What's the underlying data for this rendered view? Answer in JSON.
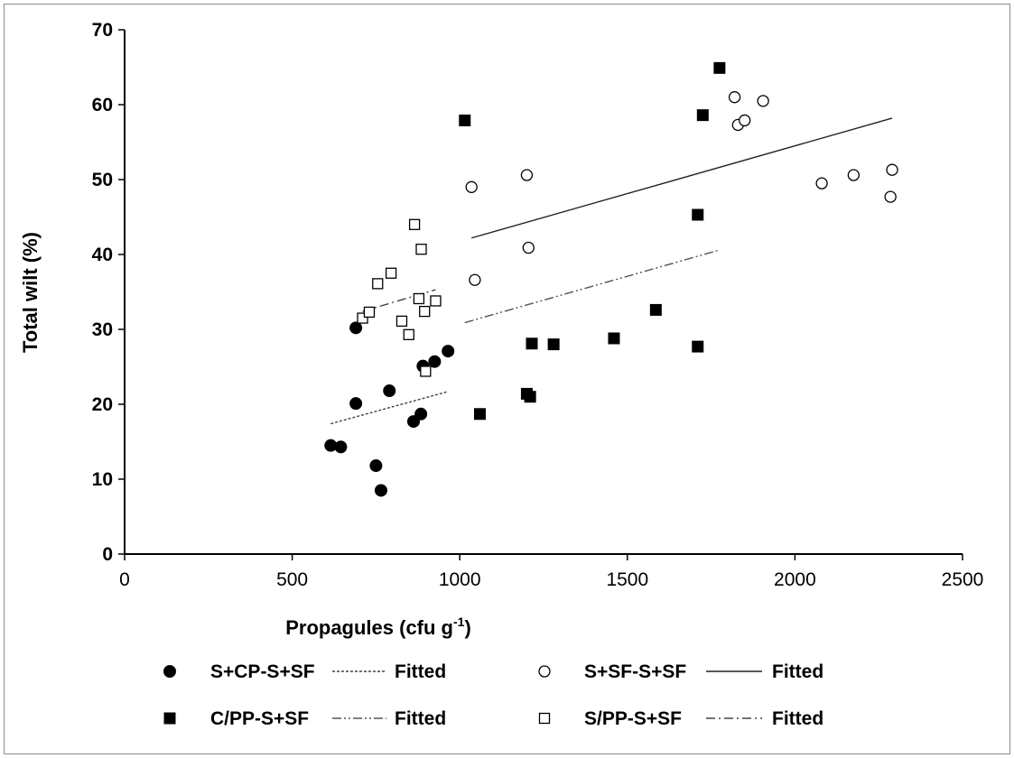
{
  "chart_data": {
    "type": "scatter",
    "xlabel": "Propagules (cfu g",
    "xlabel_sup": "-1",
    "xlabel_end": ")",
    "ylabel": "Total wilt (%)",
    "xlim": [
      0,
      2500
    ],
    "ylim": [
      0,
      70
    ],
    "x_ticks": [
      0,
      500,
      1000,
      1500,
      2000,
      2500
    ],
    "y_ticks": [
      0,
      10,
      20,
      30,
      40,
      50,
      60,
      70
    ],
    "grid": false,
    "legend_position": "bottom",
    "fit_label": "Fitted",
    "series": [
      {
        "name": "S+CP-S+SF",
        "marker": "circle-filled",
        "points": [
          [
            615,
            14.5
          ],
          [
            645,
            14.3
          ],
          [
            690,
            30.2
          ],
          [
            690,
            20.1
          ],
          [
            750,
            11.8
          ],
          [
            765,
            8.5
          ],
          [
            790,
            21.8
          ],
          [
            862,
            17.7
          ],
          [
            884,
            18.7
          ],
          [
            890,
            25.1
          ],
          [
            925,
            25.7
          ],
          [
            965,
            27.1
          ]
        ],
        "fit": [
          [
            615,
            17.4
          ],
          [
            965,
            21.7
          ]
        ],
        "fit_style": "dotted"
      },
      {
        "name": "S+SF-S+SF",
        "marker": "circle-open",
        "points": [
          [
            1035,
            49.0
          ],
          [
            1045,
            36.6
          ],
          [
            1200,
            50.6
          ],
          [
            1205,
            40.9
          ],
          [
            1820,
            61.0
          ],
          [
            1830,
            57.3
          ],
          [
            1850,
            57.9
          ],
          [
            1905,
            60.5
          ],
          [
            2080,
            49.5
          ],
          [
            2175,
            50.6
          ],
          [
            2285,
            47.7
          ],
          [
            2290,
            51.3
          ]
        ],
        "fit": [
          [
            1035,
            42.2
          ],
          [
            2290,
            58.2
          ]
        ],
        "fit_style": "solid"
      },
      {
        "name": "C/PP-S+SF",
        "marker": "square-filled",
        "points": [
          [
            1015,
            57.9
          ],
          [
            1060,
            18.7
          ],
          [
            1200,
            21.4
          ],
          [
            1210,
            21.0
          ],
          [
            1215,
            28.1
          ],
          [
            1280,
            28.0
          ],
          [
            1460,
            28.8
          ],
          [
            1585,
            32.6
          ],
          [
            1710,
            45.3
          ],
          [
            1710,
            27.7
          ],
          [
            1725,
            58.6
          ],
          [
            1775,
            64.9
          ]
        ],
        "fit": [
          [
            1015,
            30.9
          ],
          [
            1775,
            40.6
          ]
        ],
        "fit_style": "dash-dot-dot"
      },
      {
        "name": "S/PP-S+SF",
        "marker": "square-open",
        "points": [
          [
            710,
            31.5
          ],
          [
            730,
            32.3
          ],
          [
            755,
            36.1
          ],
          [
            795,
            37.5
          ],
          [
            827,
            31.1
          ],
          [
            848,
            29.3
          ],
          [
            865,
            44.0
          ],
          [
            878,
            34.1
          ],
          [
            885,
            40.7
          ],
          [
            895,
            32.4
          ],
          [
            898,
            24.4
          ],
          [
            928,
            33.8
          ]
        ],
        "fit": [
          [
            710,
            32.4
          ],
          [
            928,
            35.3
          ]
        ],
        "fit_style": "dash-dot"
      }
    ]
  }
}
